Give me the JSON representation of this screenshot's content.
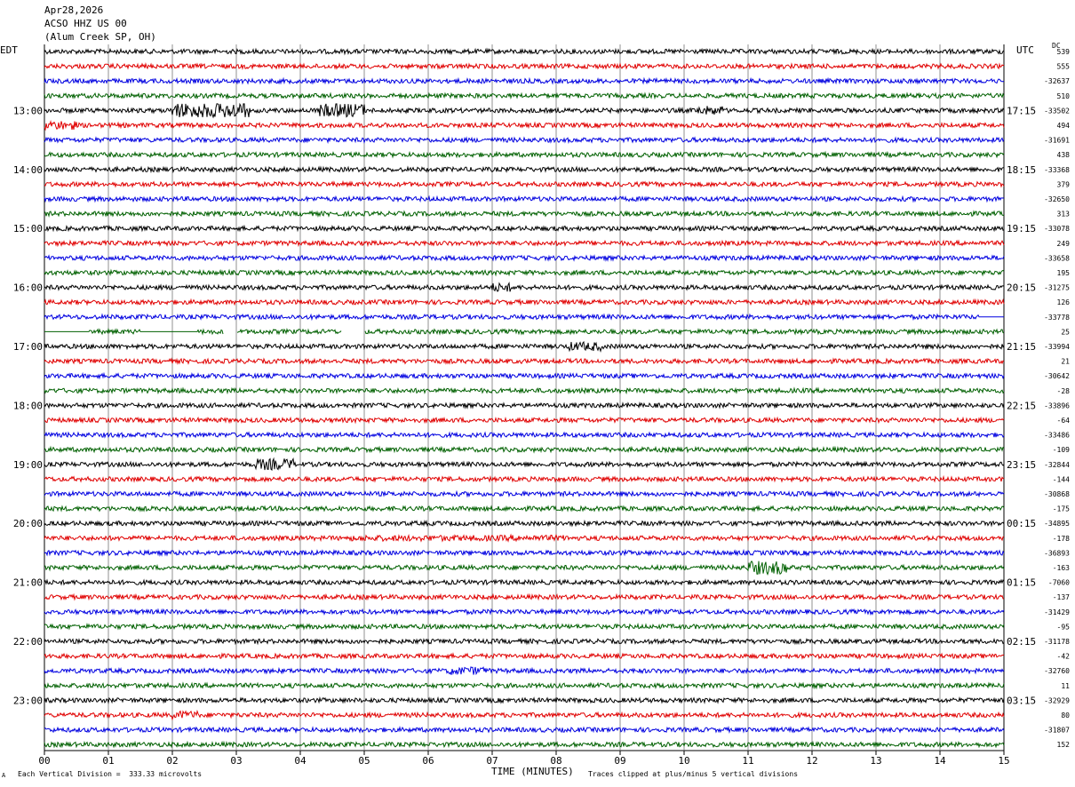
{
  "header": {
    "date": "Apr28,2026",
    "station": "ACSO HHZ US 00",
    "location": "(Alum Creek SP, OH)"
  },
  "labels": {
    "left_zone": "EDT",
    "right_zone": "UTC",
    "dc": "DC",
    "x_axis_title": "TIME (MINUTES)",
    "footer_left": "Each Vertical Division =  333.33 microvolts",
    "footer_right": "Traces clipped at plus/minus 5 vertical divisions",
    "corner_mark": "A"
  },
  "chart_data": {
    "type": "line",
    "title": "ACSO HHZ US 00",
    "xlabel": "TIME (MINUTES)",
    "ylabel": "",
    "xlim": [
      0,
      15
    ],
    "x_ticks": [
      "00",
      "01",
      "02",
      "03",
      "04",
      "05",
      "06",
      "07",
      "08",
      "09",
      "10",
      "11",
      "12",
      "13",
      "14",
      "15"
    ],
    "left_time_labels": [
      "13:00",
      "14:00",
      "15:00",
      "16:00",
      "17:00",
      "18:00",
      "19:00",
      "20:00",
      "21:00",
      "22:00",
      "23:00"
    ],
    "right_time_labels": [
      "17:15",
      "18:15",
      "19:15",
      "20:15",
      "21:15",
      "22:15",
      "23:15",
      "00:15",
      "01:15",
      "02:15",
      "03:15"
    ],
    "trace_colors": [
      "#000000",
      "#e00000",
      "#0000e0",
      "#006000"
    ],
    "trace_count": 48,
    "dc_offsets": [
      "539",
      "555",
      "-32637",
      "510",
      "-33502",
      "494",
      "-31691",
      "438",
      "-33368",
      "379",
      "-32650",
      "313",
      "-33078",
      "249",
      "-33658",
      "195",
      "-31275",
      "126",
      "-33778",
      "25",
      "-33994",
      "21",
      "-30642",
      "-28",
      "-33896",
      "-64",
      "-33486",
      "-109",
      "-32844",
      "-144",
      "-30868",
      "-175",
      "-34895",
      "-178",
      "-36893",
      "-163",
      "-7060",
      "-137",
      "-31429",
      "-95",
      "-31178",
      "-42",
      "-32760",
      "11",
      "-32929",
      "80",
      "-31807",
      "152"
    ],
    "events": [
      {
        "trace": 4,
        "start_min": 2.0,
        "end_min": 3.2,
        "amp": 3.5
      },
      {
        "trace": 4,
        "start_min": 4.3,
        "end_min": 5.0,
        "amp": 3.0
      },
      {
        "trace": 4,
        "start_min": 10.2,
        "end_min": 10.6,
        "amp": 2.0
      },
      {
        "trace": 5,
        "start_min": 0.0,
        "end_min": 0.5,
        "amp": 2.0
      },
      {
        "trace": 16,
        "start_min": 7.0,
        "end_min": 7.3,
        "amp": 2.0
      },
      {
        "trace": 20,
        "start_min": 8.2,
        "end_min": 8.7,
        "amp": 2.0
      },
      {
        "trace": 28,
        "start_min": 3.3,
        "end_min": 3.9,
        "amp": 2.5
      },
      {
        "trace": 33,
        "start_min": 4.8,
        "end_min": 8.2,
        "amp": 1.3
      },
      {
        "trace": 35,
        "start_min": 11.0,
        "end_min": 11.6,
        "amp": 3.0
      },
      {
        "trace": 42,
        "start_min": 6.3,
        "end_min": 6.9,
        "amp": 1.8
      },
      {
        "trace": 45,
        "start_min": 2.0,
        "end_min": 2.4,
        "amp": 1.8
      }
    ],
    "gaps": [
      {
        "trace": 18,
        "start_min": 14.6,
        "end_min": 15.0,
        "flat": true
      },
      {
        "trace": 19,
        "start_min": 0.0,
        "end_min": 0.7,
        "flat": true
      },
      {
        "trace": 19,
        "start_min": 1.5,
        "end_min": 2.4,
        "flat": true
      },
      {
        "trace": 19,
        "start_min": 2.8,
        "end_min": 3.0,
        "flat": false
      },
      {
        "trace": 19,
        "start_min": 4.65,
        "end_min": 5.0,
        "flat": false
      }
    ]
  }
}
